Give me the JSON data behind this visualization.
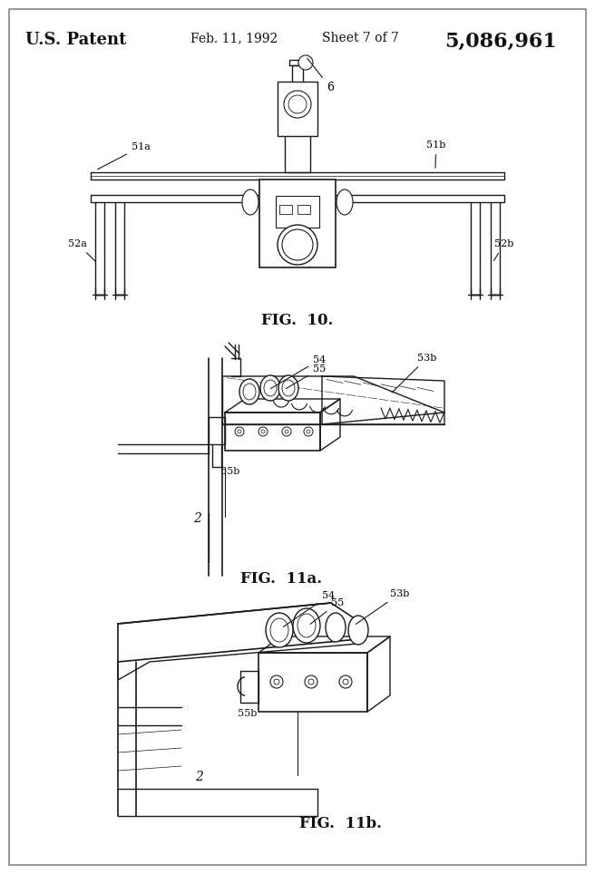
{
  "bg_color": "#ffffff",
  "line_color": "#1a1a1a",
  "header": {
    "patent_left": "U.S. Patent",
    "patent_date": "Feb. 11, 1992",
    "patent_sheet": "Sheet 7 of 7",
    "patent_number": "5,086,961"
  }
}
